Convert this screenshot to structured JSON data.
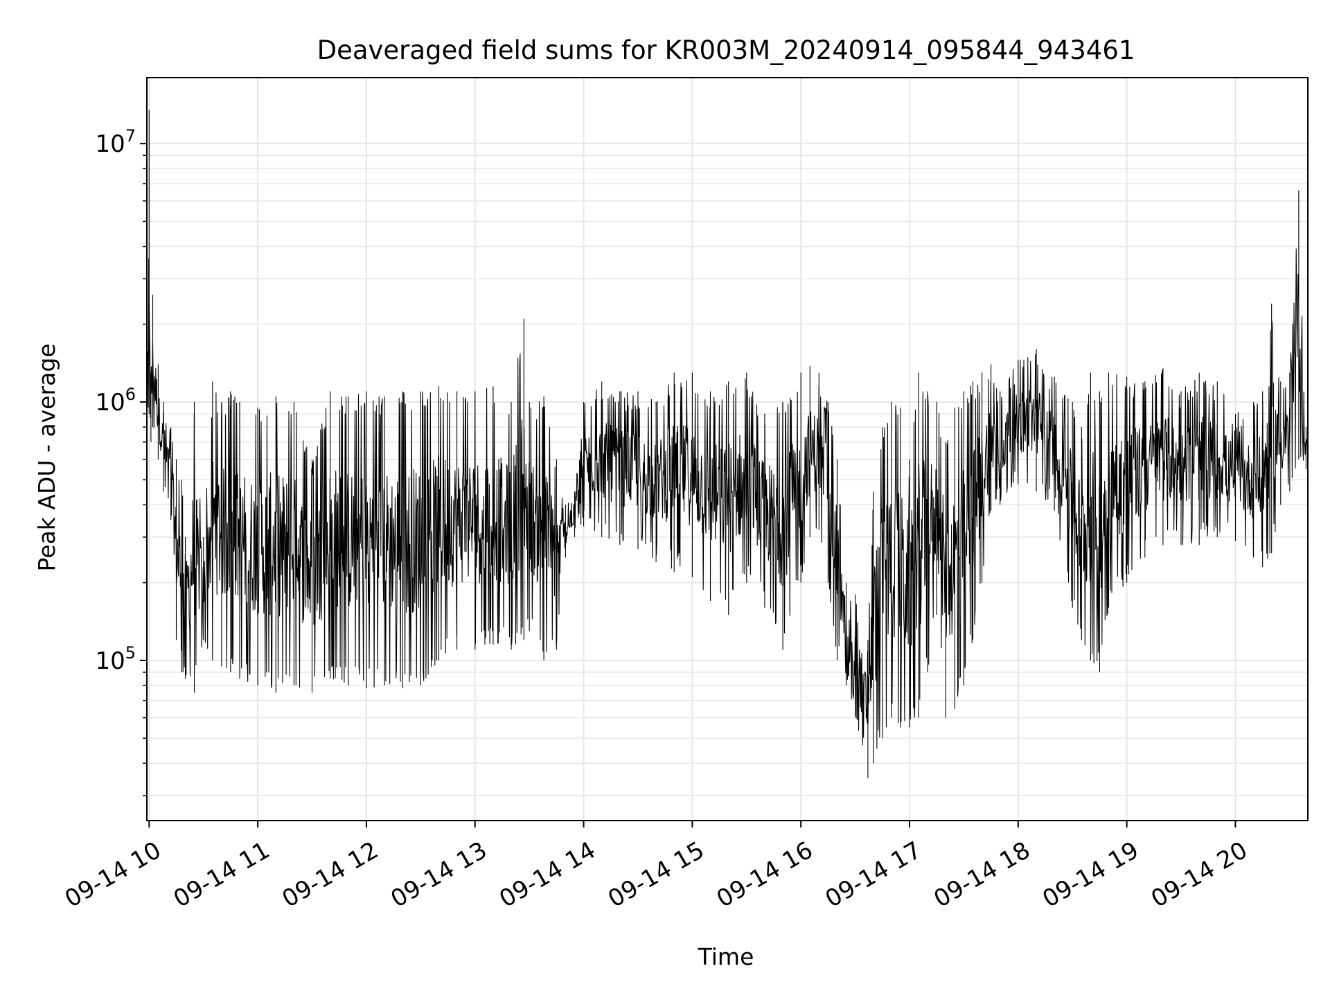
{
  "chart_data": {
    "type": "line",
    "title": "Deaveraged field sums for KR003M_20240914_095844_943461",
    "xlabel": "Time",
    "ylabel": "Peak ADU - average",
    "x_tick_labels": [
      "09-14 10",
      "09-14 11",
      "09-14 12",
      "09-14 13",
      "09-14 14",
      "09-14 15",
      "09-14 16",
      "09-14 17",
      "09-14 18",
      "09-14 19",
      "09-14 20"
    ],
    "y_scale": "log",
    "y_major_ticks": [
      {
        "value": 100000,
        "base": "10",
        "exp": "5"
      },
      {
        "value": 1000000,
        "base": "10",
        "exp": "6"
      },
      {
        "value": 10000000,
        "base": "10",
        "exp": "7"
      }
    ],
    "xlim": [
      "2024-09-14 09:58:44",
      "2024-09-14 20:40:00"
    ],
    "ylim": [
      24000,
      18000000
    ],
    "grid": true,
    "line_color": "#000000",
    "grid_color": "#e6e6e6",
    "series": [
      {
        "name": "",
        "x": [
          "2024-09-14 09:58:44",
          "2024-09-14 10:00",
          "2024-09-14 10:01",
          "2024-09-14 10:02",
          "2024-09-14 10:05",
          "2024-09-14 10:08",
          "2024-09-14 10:12",
          "2024-09-14 10:15",
          "2024-09-14 10:18",
          "2024-09-14 10:20",
          "2024-09-14 10:25",
          "2024-09-14 10:30",
          "2024-09-14 10:35",
          "2024-09-14 10:40",
          "2024-09-14 10:45",
          "2024-09-14 10:50",
          "2024-09-14 11:00",
          "2024-09-14 11:10",
          "2024-09-14 11:20",
          "2024-09-14 11:30",
          "2024-09-14 11:40",
          "2024-09-14 11:50",
          "2024-09-14 12:00",
          "2024-09-14 12:10",
          "2024-09-14 12:20",
          "2024-09-14 12:30",
          "2024-09-14 12:40",
          "2024-09-14 12:50",
          "2024-09-14 13:00",
          "2024-09-14 13:10",
          "2024-09-14 13:20",
          "2024-09-14 13:27",
          "2024-09-14 13:30",
          "2024-09-14 13:38",
          "2024-09-14 13:45",
          "2024-09-14 13:50",
          "2024-09-14 13:55",
          "2024-09-14 14:00",
          "2024-09-14 14:10",
          "2024-09-14 14:20",
          "2024-09-14 14:30",
          "2024-09-14 14:40",
          "2024-09-14 14:50",
          "2024-09-14 15:00",
          "2024-09-14 15:10",
          "2024-09-14 15:20",
          "2024-09-14 15:30",
          "2024-09-14 15:40",
          "2024-09-14 15:50",
          "2024-09-14 16:00",
          "2024-09-14 16:05",
          "2024-09-14 16:10",
          "2024-09-14 16:15",
          "2024-09-14 16:20",
          "2024-09-14 16:25",
          "2024-09-14 16:30",
          "2024-09-14 16:37",
          "2024-09-14 16:40",
          "2024-09-14 16:45",
          "2024-09-14 16:50",
          "2024-09-14 16:55",
          "2024-09-14 17:00",
          "2024-09-14 17:05",
          "2024-09-14 17:10",
          "2024-09-14 17:15",
          "2024-09-14 17:20",
          "2024-09-14 17:25",
          "2024-09-14 17:30",
          "2024-09-14 17:35",
          "2024-09-14 17:40",
          "2024-09-14 17:45",
          "2024-09-14 17:50",
          "2024-09-14 18:00",
          "2024-09-14 18:10",
          "2024-09-14 18:20",
          "2024-09-14 18:30",
          "2024-09-14 18:35",
          "2024-09-14 18:40",
          "2024-09-14 18:45",
          "2024-09-14 18:50",
          "2024-09-14 19:00",
          "2024-09-14 19:10",
          "2024-09-14 19:20",
          "2024-09-14 19:30",
          "2024-09-14 19:40",
          "2024-09-14 19:50",
          "2024-09-14 20:00",
          "2024-09-14 20:10",
          "2024-09-14 20:15",
          "2024-09-14 20:20",
          "2024-09-14 20:25",
          "2024-09-14 20:30",
          "2024-09-14 20:35",
          "2024-09-14 20:39"
        ],
        "y_high": [
          900000,
          13500000,
          1300000,
          2600000,
          1400000,
          1000000,
          800000,
          600000,
          500000,
          300000,
          1000000,
          300000,
          1200000,
          1000000,
          1100000,
          1000000,
          950000,
          1050000,
          1000000,
          600000,
          1100000,
          1050000,
          1100000,
          1050000,
          1100000,
          1100000,
          1150000,
          1100000,
          1100000,
          1150000,
          1000000,
          2100000,
          1000000,
          1050000,
          600000,
          400000,
          450000,
          1000000,
          1200000,
          1100000,
          1100000,
          1000000,
          1300000,
          1300000,
          1100000,
          1200000,
          1300000,
          900000,
          1000000,
          1300000,
          1380000,
          1300000,
          1000000,
          600000,
          200000,
          180000,
          120000,
          450000,
          800000,
          1000000,
          950000,
          600000,
          1300000,
          1100000,
          1000000,
          700000,
          950000,
          1100000,
          1200000,
          1300000,
          1400000,
          1100000,
          1450000,
          1600000,
          1250000,
          1000000,
          800000,
          1300000,
          1100000,
          1300000,
          1250000,
          1200000,
          1350000,
          1100000,
          1300000,
          1200000,
          900000,
          1000000,
          1100000,
          2400000,
          1200000,
          1300000,
          6600000,
          800000
        ],
        "y_low": [
          700000,
          900000,
          700000,
          800000,
          600000,
          450000,
          350000,
          120000,
          90000,
          85000,
          75000,
          120000,
          100000,
          95000,
          90000,
          85000,
          80000,
          75000,
          80000,
          75000,
          85000,
          80000,
          78000,
          80000,
          78000,
          80000,
          100000,
          110000,
          110000,
          115000,
          110000,
          120000,
          130000,
          100000,
          110000,
          250000,
          300000,
          330000,
          300000,
          280000,
          270000,
          240000,
          220000,
          210000,
          170000,
          150000,
          200000,
          160000,
          110000,
          200000,
          300000,
          320000,
          200000,
          100000,
          80000,
          60000,
          35000,
          40000,
          50000,
          60000,
          55000,
          55000,
          60000,
          90000,
          150000,
          60000,
          65000,
          80000,
          120000,
          200000,
          380000,
          400000,
          480000,
          450000,
          380000,
          160000,
          120000,
          100000,
          90000,
          160000,
          200000,
          250000,
          280000,
          280000,
          280000,
          300000,
          290000,
          250000,
          230000,
          260000,
          400000,
          450000,
          600000,
          550000
        ]
      }
    ]
  }
}
